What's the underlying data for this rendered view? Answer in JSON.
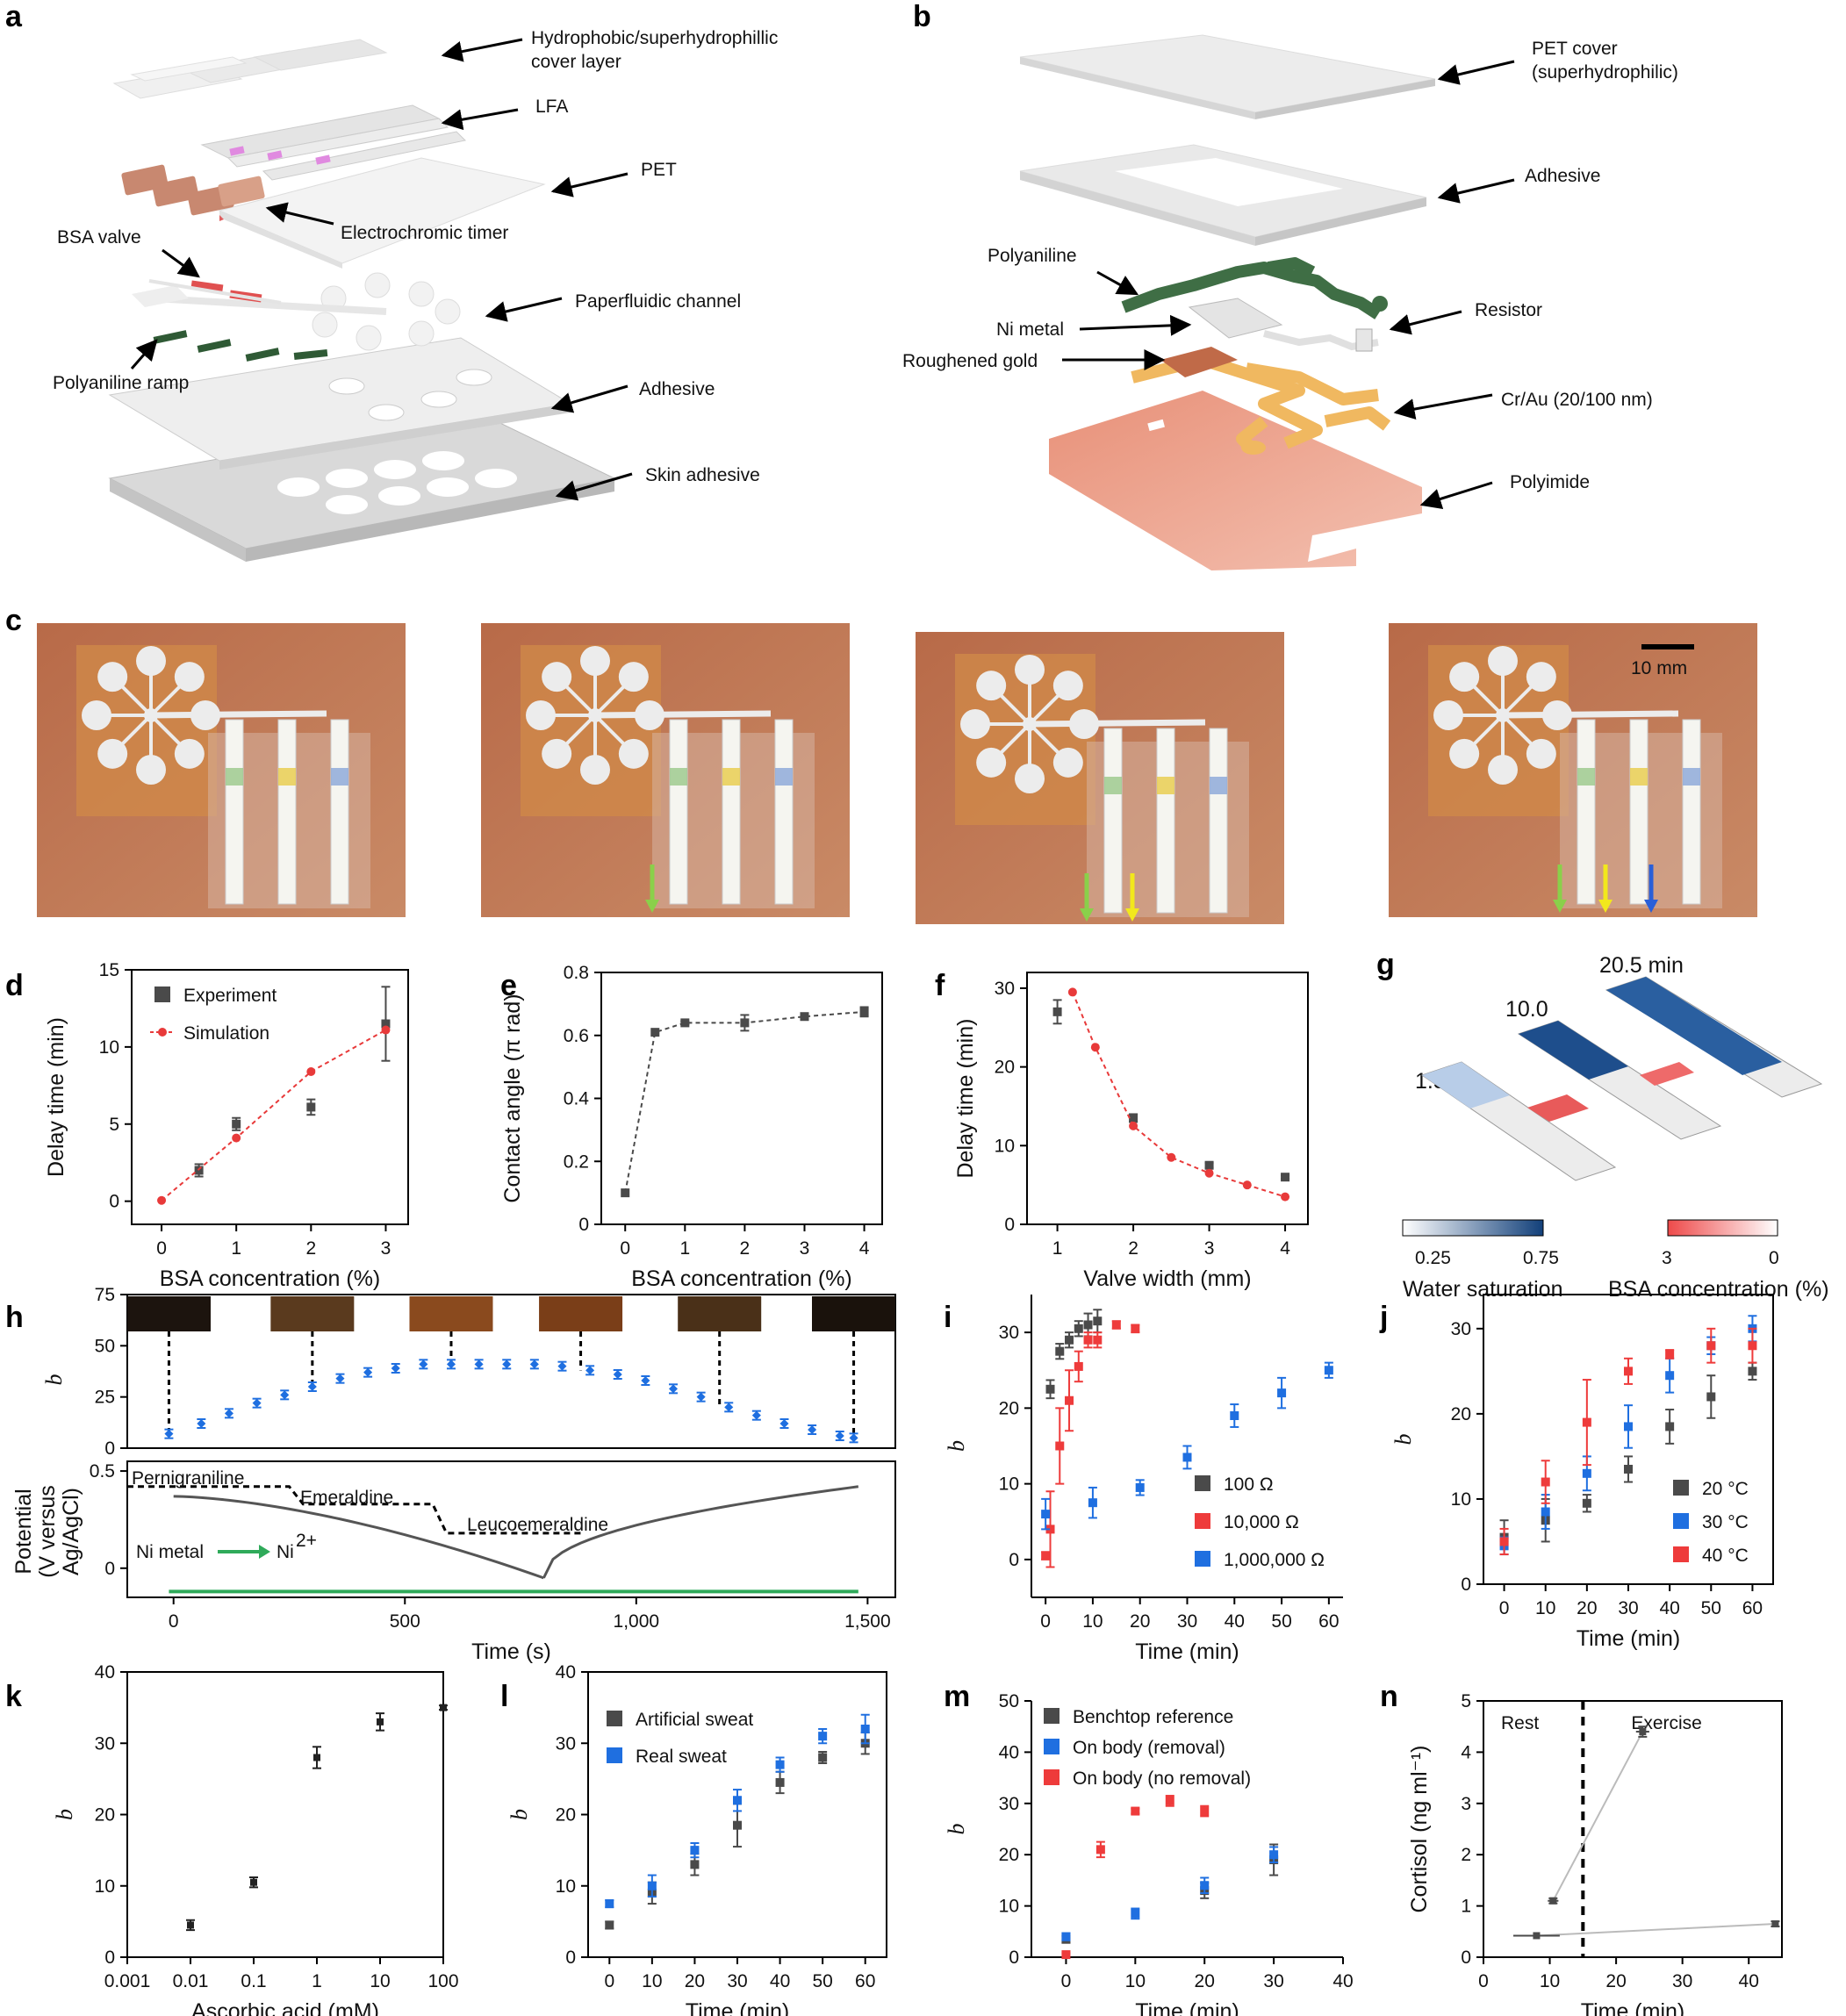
{
  "colors": {
    "experiment": "#4a4a4a",
    "simulation": "#e83a3a",
    "blue": "#1f6fe0",
    "red": "#ee3b3b",
    "green": "#2faa5a",
    "dark_green": "#3f6e45",
    "skin": "#c47a55",
    "polyimide": "#eaa48c"
  },
  "panel_a": {
    "label": "a",
    "annotations": [
      "Hydrophobic/superhydrophillic",
      "cover layer",
      "LFA",
      "PET",
      "Electrochromic timer",
      "BSA valve",
      "Paperfluidic channel",
      "Polyaniline ramp",
      "Adhesive",
      "Skin adhesive"
    ]
  },
  "panel_b": {
    "label": "b",
    "annotations": [
      "PET cover",
      "(superhydrophilic)",
      "Adhesive",
      "Polyaniline",
      "Resistor",
      "Ni metal",
      "Roughened gold",
      "Cr/Au (20/100 nm)",
      "Polyimide"
    ]
  },
  "panel_c": {
    "label": "c",
    "scalebar": "10 mm",
    "photo_arrows": [
      [
        "#8ad04a"
      ],
      [
        "#8ad04a",
        "#f2e81c"
      ],
      [
        "#8ad04a",
        "#f2e81c",
        "#2a5fd8"
      ]
    ]
  },
  "panel_g": {
    "label": "g",
    "times": [
      "1.5",
      "10.0",
      "20.5 min"
    ],
    "water_scale": {
      "min": "0.25",
      "max": "0.75",
      "label": "Water saturation"
    },
    "bsa_scale": {
      "min": "3",
      "max": "0",
      "label": "BSA concentration (%)"
    }
  },
  "panel_h_annotations": {
    "states": [
      "Pernigraniline",
      "Emeraldine",
      "Leucoemeraldine"
    ],
    "ni_left": "Ni metal",
    "ni_right": "Ni",
    "ni_sup": "2+"
  },
  "chart_data": [
    {
      "panel": "d",
      "type": "scatter",
      "xlabel": "BSA concentration (%)",
      "ylabel": "Delay time (min)",
      "xlim": [
        -0.4,
        3.3
      ],
      "ylim": [
        -1.5,
        15
      ],
      "xticks": [
        0,
        1,
        2,
        3
      ],
      "yticks": [
        0,
        5,
        10,
        15
      ],
      "legend_position": "top-left",
      "series": [
        {
          "name": "Experiment",
          "style": "square",
          "color": "#4a4a4a",
          "x": [
            0.5,
            1,
            2,
            3
          ],
          "y": [
            2.0,
            5.0,
            6.1,
            11.5
          ],
          "err": [
            0.4,
            0.4,
            0.5,
            2.4
          ]
        },
        {
          "name": "Simulation",
          "style": "dot-dash",
          "color": "#e83a3a",
          "x": [
            0,
            1,
            2,
            3
          ],
          "y": [
            0.05,
            4.1,
            8.4,
            11.1
          ]
        }
      ]
    },
    {
      "panel": "e",
      "type": "scatter",
      "xlabel": "BSA concentration (%)",
      "ylabel": "Contact angle (π rad)",
      "xlim": [
        -0.4,
        4.3
      ],
      "ylim": [
        0,
        0.8
      ],
      "xticks": [
        0,
        1,
        2,
        3,
        4
      ],
      "yticks": [
        0,
        0.2,
        0.4,
        0.6,
        0.8
      ],
      "series": [
        {
          "name": "",
          "style": "square-dash",
          "color": "#4a4a4a",
          "x": [
            0,
            0.5,
            1,
            2,
            3,
            4
          ],
          "y": [
            0.1,
            0.61,
            0.64,
            0.64,
            0.66,
            0.675
          ],
          "err": [
            0,
            0,
            0.005,
            0.025,
            0,
            0.015
          ]
        }
      ]
    },
    {
      "panel": "f",
      "type": "scatter",
      "xlabel": "Valve width (mm)",
      "ylabel": "Delay time (min)",
      "xlim": [
        0.6,
        4.3
      ],
      "ylim": [
        0,
        32
      ],
      "xticks": [
        1,
        2,
        3,
        4
      ],
      "yticks": [
        0,
        10,
        20,
        30
      ],
      "series": [
        {
          "name": "",
          "style": "square",
          "color": "#4a4a4a",
          "x": [
            1,
            2,
            3,
            4
          ],
          "y": [
            27,
            13.5,
            7.5,
            6
          ],
          "err": [
            1.5,
            0.5,
            0.3,
            0.2
          ]
        },
        {
          "name": "",
          "style": "dot-dash",
          "color": "#e83a3a",
          "x": [
            1.2,
            1.5,
            2,
            2.5,
            3,
            3.5,
            4
          ],
          "y": [
            29.5,
            22.5,
            12.5,
            8.5,
            6.5,
            5,
            3.5
          ]
        }
      ]
    },
    {
      "panel": "h",
      "type": "scatter",
      "xlabel": "Time (s)",
      "ylabel_top": "b",
      "ylabel_bottom": "Potential (V versus Ag/AgCl)",
      "xlim": [
        -100,
        1560
      ],
      "xticks": [
        0,
        500,
        1000,
        1500
      ],
      "xticklabels": [
        "0",
        "500",
        "1,000",
        "1,500"
      ],
      "top_ylim": [
        0,
        75
      ],
      "top_yticks": [
        0,
        25,
        50,
        75
      ],
      "bottom_yticks": [
        0,
        0.5
      ],
      "series": [
        {
          "name": "",
          "style": "diamond",
          "color": "#1f6fe0",
          "x": [
            -10,
            60,
            120,
            180,
            240,
            300,
            360,
            420,
            480,
            540,
            600,
            660,
            720,
            780,
            840,
            900,
            960,
            1020,
            1080,
            1140,
            1200,
            1260,
            1320,
            1380,
            1440,
            1470
          ],
          "y": [
            7,
            12,
            17,
            22,
            26,
            30,
            34,
            37,
            39,
            41,
            41,
            41,
            41,
            41,
            40,
            38,
            36,
            33,
            29,
            25,
            20,
            16,
            12,
            9,
            6,
            5
          ]
        }
      ],
      "swatch_times": [
        -10,
        300,
        600,
        880,
        1180,
        1470
      ]
    },
    {
      "panel": "i",
      "type": "scatter",
      "xlabel": "Time (min)",
      "ylabel": "b",
      "xlim": [
        -3,
        63
      ],
      "ylim": [
        -5,
        35
      ],
      "xticks": [
        0,
        10,
        20,
        30,
        40,
        50,
        60
      ],
      "yticks": [
        0,
        10,
        20,
        30
      ],
      "legend_position": "bottom-right",
      "series": [
        {
          "name": "100 Ω",
          "color": "#4a4a4a",
          "x": [
            1,
            3,
            5,
            7,
            9,
            11
          ],
          "y": [
            22.5,
            27.5,
            29,
            30.5,
            31,
            31.5
          ],
          "err": [
            1.2,
            1,
            1,
            1,
            1.5,
            1.5
          ]
        },
        {
          "name": "10,000 Ω",
          "color": "#ee3b3b",
          "x": [
            0,
            1,
            3,
            5,
            7,
            9,
            11,
            15,
            19
          ],
          "y": [
            0.5,
            4,
            15,
            21,
            25.5,
            29,
            29,
            31,
            30.5
          ],
          "err": [
            0.5,
            5,
            5,
            4,
            2,
            1,
            1,
            0.5,
            0.5
          ]
        },
        {
          "name": "1,000,000 Ω",
          "color": "#1f6fe0",
          "x": [
            0,
            10,
            20,
            30,
            40,
            50,
            60
          ],
          "y": [
            6,
            7.5,
            9.5,
            13.5,
            19,
            22,
            25
          ],
          "err": [
            2,
            2,
            1,
            1.5,
            1.5,
            2,
            1
          ]
        }
      ]
    },
    {
      "panel": "j",
      "type": "scatter",
      "xlabel": "Time (min)",
      "ylabel": "b",
      "xlim": [
        -5,
        65
      ],
      "ylim": [
        0,
        34
      ],
      "xticks": [
        0,
        10,
        20,
        30,
        40,
        50,
        60
      ],
      "yticks": [
        0,
        10,
        20,
        30
      ],
      "legend_position": "bottom-right",
      "series": [
        {
          "name": "20 °C",
          "color": "#4a4a4a",
          "x": [
            0,
            10,
            20,
            30,
            40,
            50,
            60
          ],
          "y": [
            5.5,
            7.5,
            9.5,
            13.5,
            18.5,
            22,
            25
          ],
          "err": [
            2,
            2.5,
            1,
            1.5,
            2,
            2.5,
            1
          ]
        },
        {
          "name": "30 °C",
          "color": "#1f6fe0",
          "x": [
            0,
            10,
            20,
            30,
            40,
            50,
            60
          ],
          "y": [
            4.5,
            8.5,
            13,
            18.5,
            24.5,
            28,
            30
          ],
          "err": [
            1,
            2,
            2,
            2.5,
            2,
            1,
            1.5
          ]
        },
        {
          "name": "40 °C",
          "color": "#ee3b3b",
          "x": [
            0,
            10,
            20,
            30,
            40,
            50,
            60
          ],
          "y": [
            5,
            12,
            19,
            25,
            27,
            28,
            28
          ],
          "err": [
            1.5,
            2.5,
            5,
            1.5,
            0.5,
            2,
            2
          ]
        }
      ]
    },
    {
      "panel": "k",
      "type": "scatter",
      "xlabel": "Ascorbic acid (mM)",
      "ylabel": "b",
      "xscale": "log",
      "xlim": [
        0.001,
        100
      ],
      "ylim": [
        0,
        40
      ],
      "xticks": [
        0.001,
        0.01,
        0.1,
        1,
        10,
        100
      ],
      "xticklabels": [
        "0.001",
        "0.01",
        "0.1",
        "1",
        "10",
        "100"
      ],
      "yticks": [
        0,
        10,
        20,
        30,
        40
      ],
      "series": [
        {
          "name": "",
          "color": "#222222",
          "x": [
            0.01,
            0.1,
            1,
            10,
            100
          ],
          "y": [
            4.5,
            10.5,
            28,
            33,
            35
          ],
          "err": [
            0.7,
            0.7,
            1.5,
            1.2,
            0.3
          ]
        }
      ]
    },
    {
      "panel": "l",
      "type": "scatter",
      "xlabel": "Time (min)",
      "ylabel": "b",
      "xlim": [
        -5,
        65
      ],
      "ylim": [
        0,
        40
      ],
      "xticks": [
        0,
        10,
        20,
        30,
        40,
        50,
        60
      ],
      "yticks": [
        0,
        10,
        20,
        30,
        40
      ],
      "legend_position": "top-left",
      "series": [
        {
          "name": "Artificial sweat",
          "color": "#4a4a4a",
          "x": [
            0,
            10,
            20,
            30,
            40,
            50,
            60
          ],
          "y": [
            4.5,
            9,
            13,
            18.5,
            24.5,
            28,
            30
          ],
          "err": [
            0.5,
            1.5,
            1.5,
            3,
            1.5,
            0.8,
            1.5
          ]
        },
        {
          "name": "Real sweat",
          "color": "#1f6fe0",
          "x": [
            0,
            10,
            20,
            30,
            40,
            50,
            60
          ],
          "y": [
            7.5,
            10,
            15,
            22,
            27,
            31,
            32
          ],
          "err": [
            0.5,
            1.5,
            1,
            1.5,
            1,
            1,
            2
          ]
        }
      ]
    },
    {
      "panel": "m",
      "type": "scatter",
      "xlabel": "Time (min)",
      "ylabel": "b",
      "xlim": [
        -5,
        40
      ],
      "ylim": [
        0,
        50
      ],
      "xticks": [
        0,
        10,
        20,
        30,
        40
      ],
      "yticks": [
        0,
        10,
        20,
        30,
        40,
        50
      ],
      "legend_position": "top-left",
      "series": [
        {
          "name": "Benchtop reference",
          "color": "#4a4a4a",
          "x": [
            0,
            20,
            30
          ],
          "y": [
            3.5,
            13,
            19
          ],
          "err": [
            0.7,
            1.5,
            3
          ]
        },
        {
          "name": "On body (removal)",
          "color": "#1f6fe0",
          "x": [
            0,
            10,
            20,
            30
          ],
          "y": [
            4,
            8.5,
            14,
            20
          ],
          "err": [
            0.7,
            1,
            1.5,
            1.5
          ]
        },
        {
          "name": "On body (no removal)",
          "color": "#ee3b3b",
          "x": [
            0,
            5,
            10,
            15,
            20
          ],
          "y": [
            0.5,
            21,
            28.5,
            30.5,
            28.5
          ],
          "err": [
            0.3,
            1.5,
            0.5,
            1,
            1
          ]
        }
      ]
    },
    {
      "panel": "n",
      "type": "scatter",
      "xlabel": "Time (min)",
      "ylabel": "Cortisol (ng ml⁻¹)",
      "xlim": [
        0,
        45
      ],
      "ylim": [
        0,
        5
      ],
      "xticks": [
        0,
        10,
        20,
        30,
        40
      ],
      "yticks": [
        0,
        1,
        2,
        3,
        4,
        5
      ],
      "annotations": [
        "Rest",
        "Exercise"
      ],
      "divider_x": 15,
      "series": [
        {
          "name": "",
          "color": "#4a4a4a",
          "x": [
            10.5,
            24
          ],
          "y": [
            1.1,
            4.4
          ],
          "xerr": [
            0.8,
            1
          ],
          "err": [
            0.05,
            0.1
          ]
        },
        {
          "name": "",
          "color": "#4a4a4a",
          "x": [
            8,
            44
          ],
          "y": [
            0.42,
            0.65
          ],
          "xerr": [
            3.5,
            0
          ],
          "err": [
            0,
            0.05
          ]
        }
      ]
    }
  ]
}
